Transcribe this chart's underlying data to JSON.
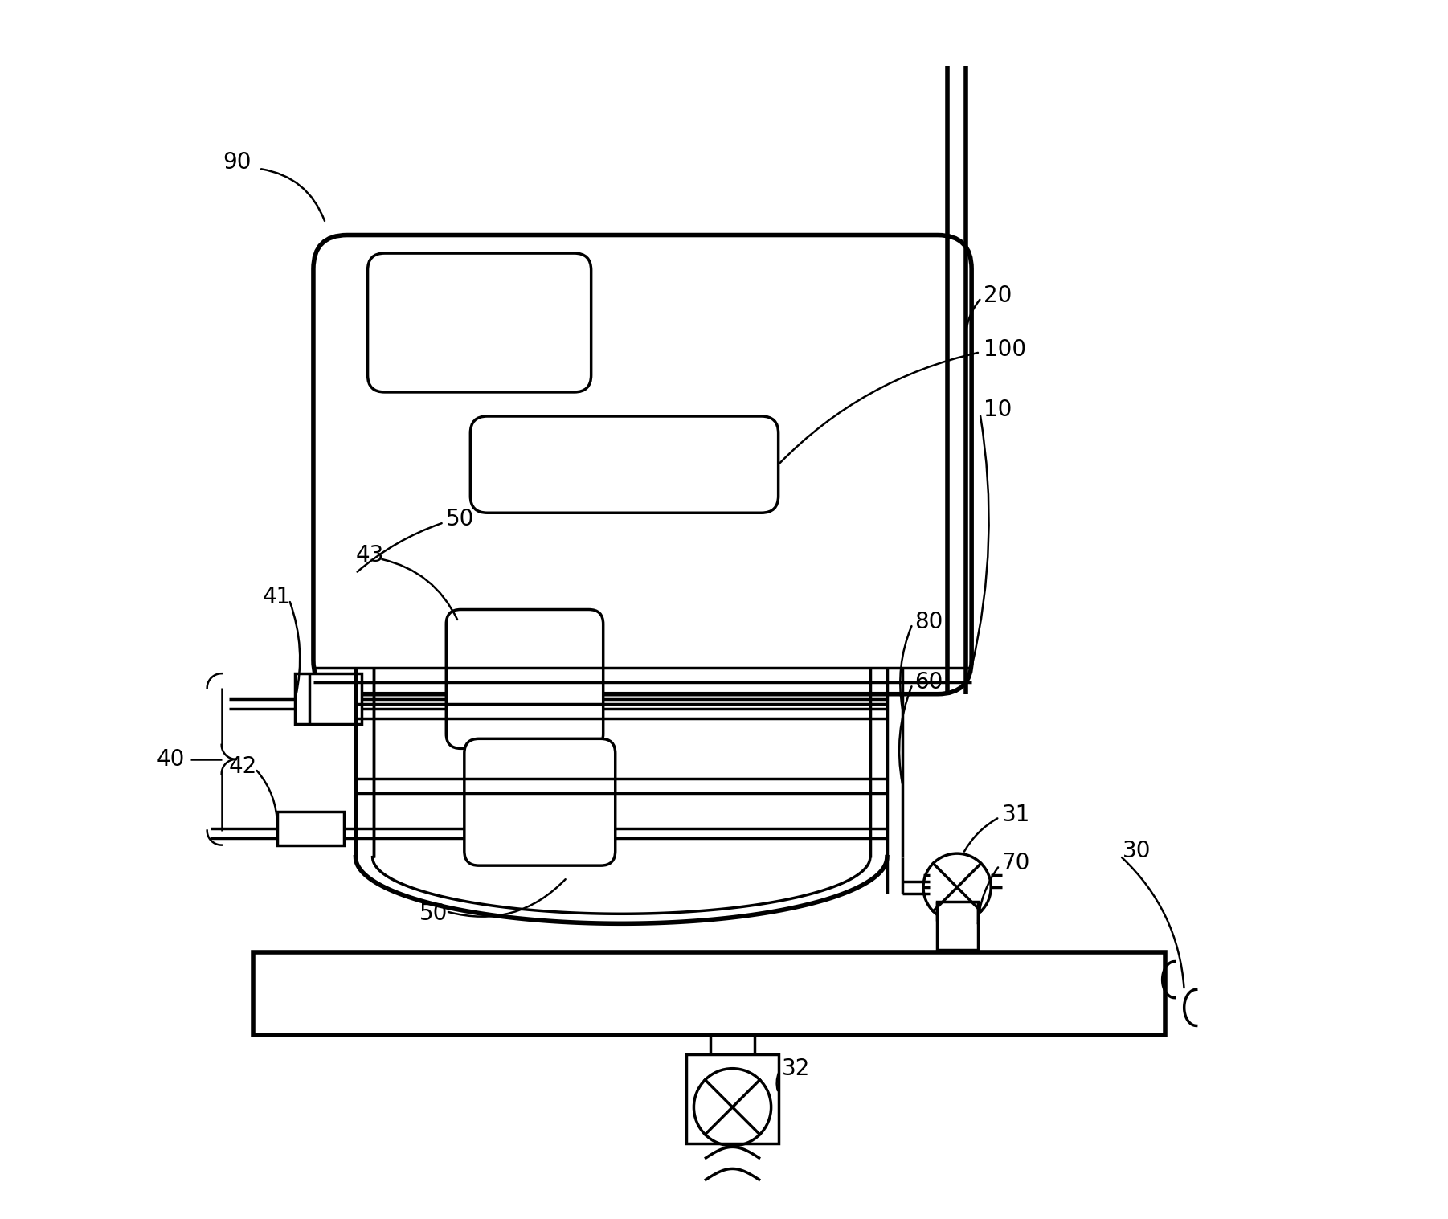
{
  "bg_color": "#ffffff",
  "line_color": "#000000",
  "lw": 2.5,
  "lw_thick": 4.0,
  "lw_thin": 1.8,
  "label_fontsize": 20,
  "figsize": [
    18.02,
    15.17
  ],
  "dpi": 100
}
